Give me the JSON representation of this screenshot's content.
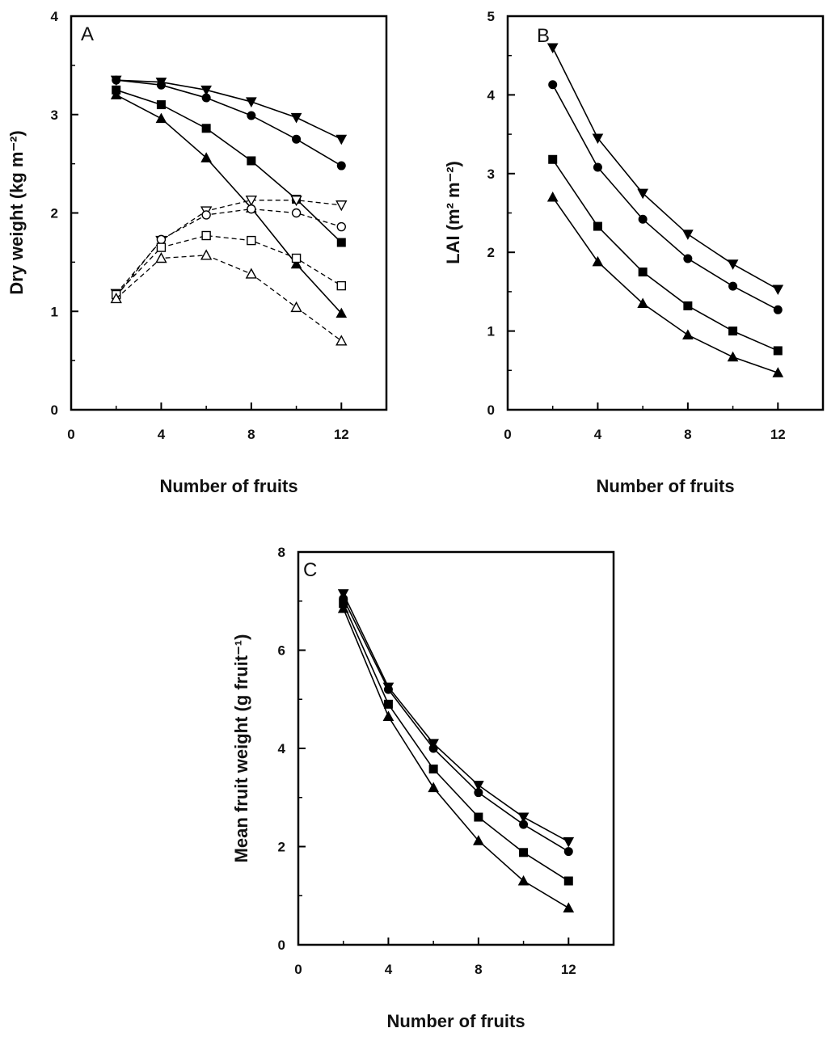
{
  "chart_data": [
    {
      "panel": "A",
      "type": "line",
      "xlabel": "Number of fruits",
      "ylabel": "Dry weight (kg m⁻²)",
      "xlim": [
        0,
        14
      ],
      "ylim": [
        0,
        4
      ],
      "xticks": [
        0,
        4,
        8,
        12
      ],
      "yticks": [
        0,
        1,
        2,
        3,
        4
      ],
      "x": [
        2,
        4,
        6,
        8,
        10,
        12
      ],
      "series": [
        {
          "marker": "triangle-down",
          "filled": true,
          "dashed": false,
          "values": [
            3.35,
            3.33,
            3.25,
            3.13,
            2.97,
            2.75
          ]
        },
        {
          "marker": "circle",
          "filled": true,
          "dashed": false,
          "values": [
            3.35,
            3.3,
            3.17,
            2.99,
            2.75,
            2.48
          ]
        },
        {
          "marker": "square",
          "filled": true,
          "dashed": false,
          "values": [
            3.25,
            3.1,
            2.86,
            2.53,
            2.14,
            1.7
          ]
        },
        {
          "marker": "triangle-up",
          "filled": true,
          "dashed": false,
          "values": [
            3.2,
            2.96,
            2.56,
            2.05,
            1.48,
            0.98
          ]
        },
        {
          "marker": "triangle-down",
          "filled": false,
          "dashed": true,
          "values": [
            1.18,
            1.72,
            2.02,
            2.13,
            2.13,
            2.08
          ]
        },
        {
          "marker": "circle",
          "filled": false,
          "dashed": true,
          "values": [
            1.15,
            1.73,
            1.98,
            2.04,
            2.0,
            1.86
          ]
        },
        {
          "marker": "square",
          "filled": false,
          "dashed": true,
          "values": [
            1.17,
            1.65,
            1.77,
            1.72,
            1.54,
            1.26
          ]
        },
        {
          "marker": "triangle-up",
          "filled": false,
          "dashed": true,
          "values": [
            1.13,
            1.54,
            1.57,
            1.38,
            1.04,
            0.7
          ]
        }
      ]
    },
    {
      "panel": "B",
      "type": "line",
      "xlabel": "Number of fruits",
      "ylabel": "LAI (m² m⁻²)",
      "xlim": [
        0,
        14
      ],
      "ylim": [
        0,
        5
      ],
      "xticks": [
        0,
        4,
        8,
        12
      ],
      "yticks": [
        0,
        1,
        2,
        3,
        4,
        5
      ],
      "x": [
        2,
        4,
        6,
        8,
        10,
        12
      ],
      "series": [
        {
          "marker": "triangle-down",
          "filled": true,
          "dashed": false,
          "values": [
            4.6,
            3.45,
            2.75,
            2.23,
            1.85,
            1.53
          ]
        },
        {
          "marker": "circle",
          "filled": true,
          "dashed": false,
          "values": [
            4.13,
            3.08,
            2.42,
            1.92,
            1.57,
            1.27
          ]
        },
        {
          "marker": "square",
          "filled": true,
          "dashed": false,
          "values": [
            3.18,
            2.33,
            1.75,
            1.32,
            1.0,
            0.75
          ]
        },
        {
          "marker": "triangle-up",
          "filled": true,
          "dashed": false,
          "values": [
            2.7,
            1.88,
            1.35,
            0.95,
            0.67,
            0.47
          ]
        }
      ]
    },
    {
      "panel": "C",
      "type": "line",
      "xlabel": "Number of fruits",
      "ylabel": "Mean fruit weight (g fruit⁻¹)",
      "xlim": [
        0,
        14
      ],
      "ylim": [
        0,
        8
      ],
      "xticks": [
        0,
        4,
        8,
        12
      ],
      "yticks": [
        0,
        2,
        4,
        6,
        8
      ],
      "x": [
        2,
        4,
        6,
        8,
        10,
        12
      ],
      "series": [
        {
          "marker": "triangle-down",
          "filled": true,
          "dashed": false,
          "values": [
            7.15,
            5.25,
            4.1,
            3.25,
            2.6,
            2.1
          ]
        },
        {
          "marker": "circle",
          "filled": true,
          "dashed": false,
          "values": [
            7.05,
            5.2,
            4.0,
            3.1,
            2.45,
            1.9
          ]
        },
        {
          "marker": "square",
          "filled": true,
          "dashed": false,
          "values": [
            6.95,
            4.9,
            3.58,
            2.6,
            1.88,
            1.3
          ]
        },
        {
          "marker": "triangle-up",
          "filled": true,
          "dashed": false,
          "values": [
            6.85,
            4.65,
            3.2,
            2.12,
            1.3,
            0.75
          ]
        }
      ]
    }
  ]
}
